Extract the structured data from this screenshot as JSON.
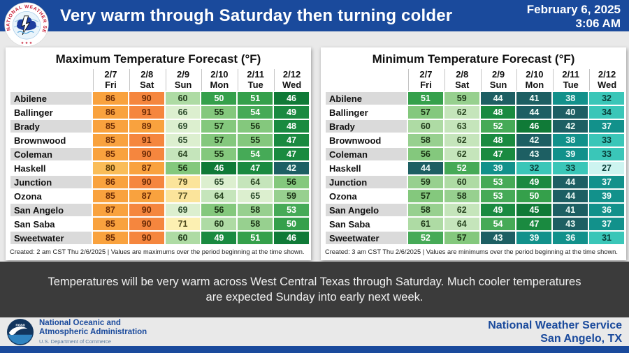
{
  "header": {
    "title": "Very warm through Saturday then turning colder",
    "date": "February 6, 2025",
    "time": "3:06 AM",
    "logo_ring_text": "NATIONAL WEATHER SERVICE"
  },
  "chart_data": [
    {
      "type": "heatmap",
      "title": "Maximum Temperature Forecast (°F)",
      "columns": [
        {
          "date": "2/7",
          "day": "Fri"
        },
        {
          "date": "2/8",
          "day": "Sat"
        },
        {
          "date": "2/9",
          "day": "Sun"
        },
        {
          "date": "2/10",
          "day": "Mon"
        },
        {
          "date": "2/11",
          "day": "Tue"
        },
        {
          "date": "2/12",
          "day": "Wed"
        }
      ],
      "rows": [
        {
          "city": "Abilene",
          "values": [
            86,
            90,
            60,
            50,
            51,
            46
          ]
        },
        {
          "city": "Ballinger",
          "values": [
            86,
            91,
            66,
            55,
            54,
            49
          ]
        },
        {
          "city": "Brady",
          "values": [
            85,
            89,
            69,
            57,
            56,
            48
          ]
        },
        {
          "city": "Brownwood",
          "values": [
            85,
            91,
            65,
            57,
            55,
            47
          ]
        },
        {
          "city": "Coleman",
          "values": [
            85,
            90,
            64,
            55,
            54,
            47
          ]
        },
        {
          "city": "Haskell",
          "values": [
            80,
            87,
            56,
            46,
            47,
            42
          ]
        },
        {
          "city": "Junction",
          "values": [
            86,
            90,
            79,
            65,
            64,
            56
          ]
        },
        {
          "city": "Ozona",
          "values": [
            85,
            87,
            77,
            64,
            65,
            59
          ]
        },
        {
          "city": "San Angelo",
          "values": [
            87,
            90,
            69,
            56,
            58,
            53
          ]
        },
        {
          "city": "San Saba",
          "values": [
            85,
            90,
            71,
            60,
            58,
            50
          ]
        },
        {
          "city": "Sweetwater",
          "values": [
            85,
            90,
            60,
            49,
            51,
            46
          ]
        }
      ],
      "footnote": "Created: 2 am CST Thu 2/6/2025  |  Values are maximums over the period beginning at the time shown."
    },
    {
      "type": "heatmap",
      "title": "Minimum Temperature Forecast (°F)",
      "columns": [
        {
          "date": "2/7",
          "day": "Fri"
        },
        {
          "date": "2/8",
          "day": "Sat"
        },
        {
          "date": "2/9",
          "day": "Sun"
        },
        {
          "date": "2/10",
          "day": "Mon"
        },
        {
          "date": "2/11",
          "day": "Tue"
        },
        {
          "date": "2/12",
          "day": "Wed"
        }
      ],
      "rows": [
        {
          "city": "Abilene",
          "values": [
            51,
            59,
            44,
            41,
            38,
            32
          ]
        },
        {
          "city": "Ballinger",
          "values": [
            57,
            62,
            48,
            44,
            40,
            34
          ]
        },
        {
          "city": "Brady",
          "values": [
            60,
            63,
            52,
            46,
            42,
            37
          ]
        },
        {
          "city": "Brownwood",
          "values": [
            58,
            62,
            48,
            42,
            38,
            33
          ]
        },
        {
          "city": "Coleman",
          "values": [
            56,
            62,
            47,
            43,
            39,
            33
          ]
        },
        {
          "city": "Haskell",
          "values": [
            44,
            52,
            39,
            32,
            33,
            27
          ]
        },
        {
          "city": "Junction",
          "values": [
            59,
            60,
            53,
            49,
            44,
            37
          ]
        },
        {
          "city": "Ozona",
          "values": [
            57,
            58,
            53,
            50,
            44,
            39
          ]
        },
        {
          "city": "San Angelo",
          "values": [
            58,
            62,
            49,
            45,
            41,
            36
          ]
        },
        {
          "city": "San Saba",
          "values": [
            61,
            64,
            54,
            47,
            43,
            37
          ]
        },
        {
          "city": "Sweetwater",
          "values": [
            52,
            57,
            43,
            39,
            36,
            31
          ]
        }
      ],
      "footnote": "Created: 3 am CST Thu 2/6/2025  |  Values are minimums over the period beginning at the time shown."
    }
  ],
  "color_scale": [
    {
      "min": 90,
      "bg": "#F5863E",
      "fg": "#6B2B06"
    },
    {
      "min": 85,
      "bg": "#F9A23E",
      "fg": "#6B2B06"
    },
    {
      "min": 80,
      "bg": "#FABD58",
      "fg": "#5A3A04"
    },
    {
      "min": 75,
      "bg": "#FBE49B",
      "fg": "#4F4A1E"
    },
    {
      "min": 70,
      "bg": "#FCF0B2",
      "fg": "#4F4A1E"
    },
    {
      "min": 65,
      "bg": "#DCEFCF",
      "fg": "#2B4A2B"
    },
    {
      "min": 62,
      "bg": "#C5E5BB",
      "fg": "#27431F"
    },
    {
      "min": 60,
      "bg": "#AEDBA4",
      "fg": "#20391A"
    },
    {
      "min": 58,
      "bg": "#97D08F",
      "fg": "#1C3517"
    },
    {
      "min": 55,
      "bg": "#84C87D",
      "fg": "#183012"
    },
    {
      "min": 52,
      "bg": "#46AA57",
      "fg": "#FFFFFF"
    },
    {
      "min": 50,
      "bg": "#35A04B",
      "fg": "#FFFFFF"
    },
    {
      "min": 47,
      "bg": "#1A8A40",
      "fg": "#FFFFFF"
    },
    {
      "min": 45,
      "bg": "#107A37",
      "fg": "#FFFFFF"
    },
    {
      "min": 40,
      "bg": "#1D5F63",
      "fg": "#EFFBF7"
    },
    {
      "min": 35,
      "bg": "#12918B",
      "fg": "#F0FBFA"
    },
    {
      "min": 30,
      "bg": "#3AC6B8",
      "fg": "#093D38"
    },
    {
      "min": 0,
      "bg": "#CDF4F0",
      "fg": "#093D38"
    }
  ],
  "message": {
    "lines": [
      "Temperatures will be very warm across West Central Texas through Saturday. Much cooler temperatures",
      "are expected Sunday into early next week."
    ]
  },
  "footer": {
    "noaa_logo_text": "noaa",
    "agency_line1": "National Oceanic and",
    "agency_line2": "Atmospheric Administration",
    "department": "U.S. Department of Commerce",
    "office_line1": "National Weather Service",
    "office_line2": "San Angelo, TX"
  },
  "colors": {
    "brand_blue": "#1A4A9C",
    "band_gray": "#3B3B3B"
  }
}
